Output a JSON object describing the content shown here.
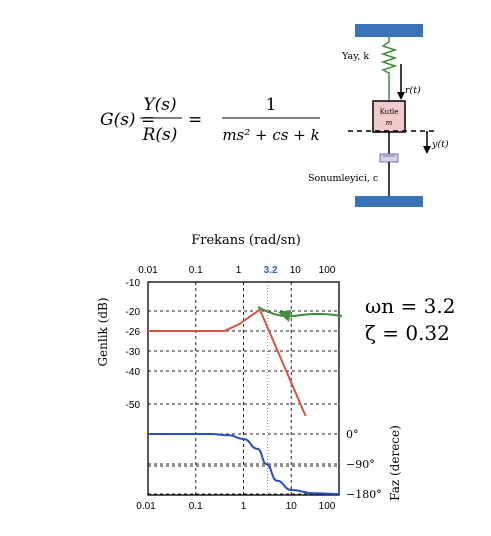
{
  "transfer_function": {
    "lhs": "G(s) =",
    "ratio_num": "Y(s)",
    "ratio_den": "R(s)",
    "equals": "=",
    "frac_num": "1",
    "frac_den": "ms² + cs + k"
  },
  "mechanism": {
    "spring_label": "Yay, k",
    "input_label": "r(t)",
    "mass_label_1": "Kutle",
    "mass_label_2": "m",
    "output_label": "y(t)",
    "damper_label": "Sonumleyici, c",
    "colors": {
      "wall": "#3a73b8",
      "mass_fill": "#f1cbcb",
      "spring": "#3f8c3f"
    }
  },
  "annotation": {
    "omega": "ωn = 3.2",
    "zeta": "ζ = 0.32",
    "arrow_color": "#3f8c3f"
  },
  "chart_data": {
    "type": "line",
    "title": "Frekans (rad/sn)",
    "x_scale": "log",
    "x_ticks_top": [
      "0.01",
      "0.1",
      "1",
      "3.2",
      "10",
      "100"
    ],
    "x_ticks_bottom": [
      "0.01",
      "0.1",
      "1",
      "10",
      "100"
    ],
    "highlight_tick": "3.2",
    "highlight_color": "#2f5fd0",
    "magnitude": {
      "ylabel": "Genlik (dB)",
      "y_ticks": [
        "-10",
        "-20",
        "-26",
        "-30",
        "-40",
        "-50"
      ],
      "color": "#d9543f",
      "points": [
        [
          0.01,
          -26
        ],
        [
          0.4,
          -26
        ],
        [
          0.8,
          -24
        ],
        [
          2.2,
          -19.5
        ],
        [
          20,
          -56
        ]
      ]
    },
    "phase": {
      "ylabel": "Faz (derece)",
      "y_ticks": [
        "0°",
        "−90°",
        "−180°"
      ],
      "color": "#2a4fc0",
      "points": [
        [
          0.01,
          0
        ],
        [
          0.2,
          0
        ],
        [
          0.5,
          -4
        ],
        [
          1,
          -15
        ],
        [
          2,
          -45
        ],
        [
          3,
          -90
        ],
        [
          5,
          -140
        ],
        [
          10,
          -168
        ],
        [
          30,
          -178
        ],
        [
          100,
          -180
        ]
      ]
    },
    "grid": true
  }
}
